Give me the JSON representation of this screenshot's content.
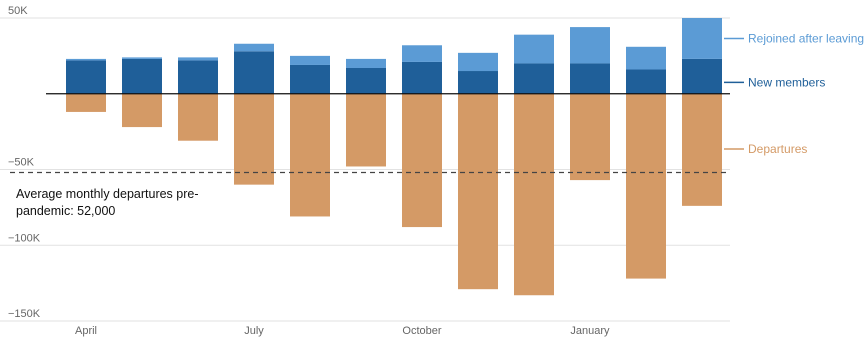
{
  "chart_data": {
    "type": "bar",
    "stacked": true,
    "categories": [
      "Apr",
      "May",
      "Jun",
      "Jul",
      "Aug",
      "Sep",
      "Oct",
      "Nov",
      "Dec",
      "Jan",
      "Feb",
      "Mar"
    ],
    "x_tick_labels": [
      {
        "index": 0,
        "label": "April"
      },
      {
        "index": 3,
        "label": "July"
      },
      {
        "index": 6,
        "label": "October"
      },
      {
        "index": 9,
        "label": "January"
      }
    ],
    "series": [
      {
        "name": "New members",
        "color": "#1f5f99",
        "values": [
          22000,
          23000,
          22000,
          28000,
          19000,
          17000,
          21000,
          15000,
          20000,
          20000,
          16000,
          23000
        ]
      },
      {
        "name": "Rejoined after leaving",
        "color": "#5b9bd5",
        "values": [
          1000,
          1000,
          2000,
          5000,
          6000,
          6000,
          11000,
          12000,
          19000,
          24000,
          15000,
          27000
        ]
      },
      {
        "name": "Departures",
        "color": "#d49a66",
        "values": [
          -12000,
          -22000,
          -31000,
          -60000,
          -81000,
          -48000,
          -88000,
          -129000,
          -133000,
          -57000,
          -122000,
          -74000
        ]
      }
    ],
    "yticks": [
      {
        "value": 50000,
        "label": "50K"
      },
      {
        "value": -50000,
        "label": "−50K"
      },
      {
        "value": -100000,
        "label": "−100K"
      },
      {
        "value": -150000,
        "label": "−150K"
      }
    ],
    "ylim": [
      -150000,
      50000
    ],
    "reference_line": {
      "value": -52000,
      "label": "Average monthly departures pre-pandemic: 52,000"
    },
    "annotation_lines": [
      "Average monthly departures pre-",
      "pandemic: 52,000"
    ],
    "legend_placement": "right"
  }
}
